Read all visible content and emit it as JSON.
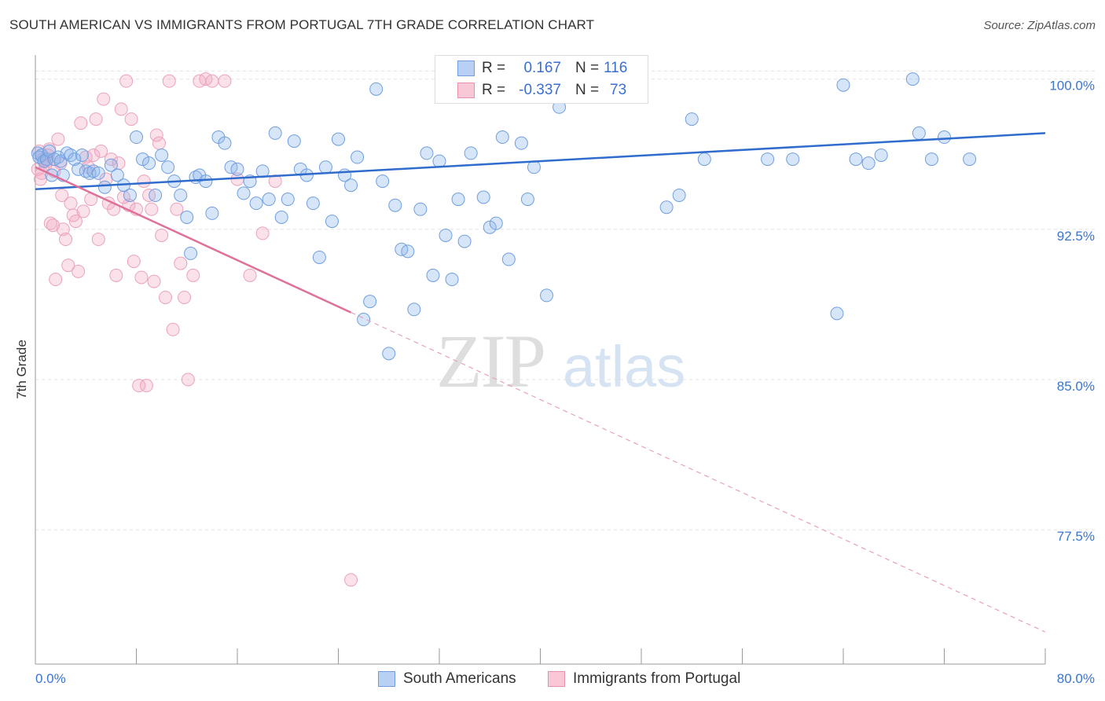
{
  "header": {
    "title": "SOUTH AMERICAN VS IMMIGRANTS FROM PORTUGAL 7TH GRADE CORRELATION CHART",
    "source": "Source: ZipAtlas.com"
  },
  "stats": [
    {
      "r_label": "R =",
      "r_value": "0.167",
      "n_label": "N =",
      "n_value": "116",
      "color": "#6f9fe0",
      "fill": "#b8d0f4"
    },
    {
      "r_label": "R =",
      "r_value": "-0.337",
      "n_label": "N =",
      "n_value": "73",
      "color": "#e88fab",
      "fill": "#f8c8d6"
    }
  ],
  "legend": {
    "series1": "South Americans",
    "series2": "Immigrants from Portugal"
  },
  "watermark": {
    "zip": "ZIP",
    "atlas": "atlas"
  },
  "chart_data": {
    "type": "scatter",
    "title": "SOUTH AMERICAN VS IMMIGRANTS FROM PORTUGAL 7TH GRADE CORRELATION CHART",
    "xlabel": "",
    "ylabel": "7th Grade",
    "xlim": [
      0,
      80
    ],
    "ylim": [
      70.8,
      101.2
    ],
    "x_tick_labels": [
      "0.0%",
      "80.0%"
    ],
    "y_ticks": [
      77.5,
      85.0,
      92.5,
      100.0
    ],
    "y_tick_labels": [
      "77.5%",
      "85.0%",
      "92.5%",
      "100.0%"
    ],
    "grid": "horizontal dashed",
    "legend_position": "bottom-center",
    "colors": {
      "blue": "#3a75d0",
      "pink": "#e0709a",
      "blue_fill": "rgba(140,180,235,0.35)",
      "pink_fill": "rgba(242,170,195,0.35)"
    },
    "series": [
      {
        "name": "South Americans",
        "color": "#3a75d0",
        "trend": {
          "x": [
            0,
            80
          ],
          "y": [
            94.5,
            97.3
          ],
          "style": "solid"
        },
        "points": [
          [
            0.2,
            96.3
          ],
          [
            0.3,
            96.1
          ],
          [
            0.5,
            96.2
          ],
          [
            0.7,
            95.9
          ],
          [
            0.9,
            96.0
          ],
          [
            1.1,
            96.4
          ],
          [
            1.3,
            95.2
          ],
          [
            1.5,
            96.0
          ],
          [
            1.8,
            96.1
          ],
          [
            2.0,
            95.9
          ],
          [
            2.2,
            95.2
          ],
          [
            2.5,
            96.3
          ],
          [
            2.8,
            96.2
          ],
          [
            3.1,
            96.0
          ],
          [
            3.4,
            95.5
          ],
          [
            3.7,
            96.2
          ],
          [
            4.0,
            95.4
          ],
          [
            4.3,
            95.3
          ],
          [
            4.6,
            95.4
          ],
          [
            5.0,
            95.3
          ],
          [
            5.5,
            94.6
          ],
          [
            6.0,
            95.7
          ],
          [
            6.5,
            95.2
          ],
          [
            7.0,
            94.7
          ],
          [
            7.5,
            94.2
          ],
          [
            8.0,
            97.1
          ],
          [
            8.5,
            96.0
          ],
          [
            9.0,
            95.8
          ],
          [
            9.5,
            94.2
          ],
          [
            10.0,
            96.2
          ],
          [
            10.5,
            95.6
          ],
          [
            11.0,
            94.9
          ],
          [
            11.5,
            94.2
          ],
          [
            12.0,
            93.1
          ],
          [
            12.3,
            91.3
          ],
          [
            12.7,
            95.1
          ],
          [
            13.0,
            95.2
          ],
          [
            13.5,
            94.9
          ],
          [
            14.0,
            93.3
          ],
          [
            14.5,
            97.1
          ],
          [
            15.0,
            96.8
          ],
          [
            15.5,
            95.6
          ],
          [
            16.0,
            95.5
          ],
          [
            16.5,
            94.3
          ],
          [
            17.0,
            94.9
          ],
          [
            17.5,
            93.8
          ],
          [
            18.0,
            95.4
          ],
          [
            18.5,
            94.0
          ],
          [
            19.0,
            97.3
          ],
          [
            19.5,
            93.1
          ],
          [
            20.0,
            94.0
          ],
          [
            20.5,
            96.9
          ],
          [
            21.0,
            95.5
          ],
          [
            21.5,
            95.2
          ],
          [
            22.0,
            93.8
          ],
          [
            22.5,
            91.1
          ],
          [
            23.0,
            95.6
          ],
          [
            23.5,
            92.9
          ],
          [
            24.0,
            97.0
          ],
          [
            24.5,
            95.2
          ],
          [
            25.0,
            94.7
          ],
          [
            25.5,
            96.1
          ],
          [
            26.0,
            88.0
          ],
          [
            26.5,
            88.9
          ],
          [
            27.0,
            99.5
          ],
          [
            27.5,
            94.9
          ],
          [
            28.0,
            86.3
          ],
          [
            28.5,
            93.7
          ],
          [
            29.0,
            91.5
          ],
          [
            29.5,
            91.4
          ],
          [
            30.0,
            88.5
          ],
          [
            30.5,
            93.5
          ],
          [
            31.0,
            96.3
          ],
          [
            31.5,
            90.2
          ],
          [
            32.0,
            95.9
          ],
          [
            32.5,
            92.2
          ],
          [
            33.0,
            90.0
          ],
          [
            33.5,
            94.0
          ],
          [
            34.0,
            91.9
          ],
          [
            34.5,
            96.3
          ],
          [
            35.0,
            100.0
          ],
          [
            35.5,
            94.1
          ],
          [
            36.0,
            92.6
          ],
          [
            36.5,
            92.8
          ],
          [
            37.0,
            97.1
          ],
          [
            37.5,
            91.0
          ],
          [
            38.0,
            99.3
          ],
          [
            38.5,
            96.8
          ],
          [
            39.0,
            94.0
          ],
          [
            39.5,
            95.6
          ],
          [
            40.0,
            99.3
          ],
          [
            40.5,
            89.2
          ],
          [
            41.0,
            99.9
          ],
          [
            41.5,
            98.6
          ],
          [
            42.0,
            99.5
          ],
          [
            43.0,
            100.0
          ],
          [
            44.0,
            99.6
          ],
          [
            45.0,
            99.8
          ],
          [
            46.0,
            99.5
          ],
          [
            47.5,
            99.9
          ],
          [
            50.0,
            93.6
          ],
          [
            51.0,
            94.2
          ],
          [
            52.0,
            98.0
          ],
          [
            53.0,
            96.0
          ],
          [
            58.0,
            96.0
          ],
          [
            60.0,
            96.0
          ],
          [
            63.5,
            88.3
          ],
          [
            64.0,
            99.7
          ],
          [
            65.0,
            96.0
          ],
          [
            66.0,
            95.8
          ],
          [
            67.0,
            96.2
          ],
          [
            69.5,
            100.0
          ],
          [
            70.0,
            97.3
          ],
          [
            71.0,
            96.0
          ],
          [
            72.0,
            97.1
          ],
          [
            74.0,
            96.0
          ]
        ]
      },
      {
        "name": "Immigrants from Portugal",
        "color": "#e0709a",
        "trend": {
          "x": [
            0,
            80
          ],
          "y": [
            95.6,
            72.4
          ],
          "style": "solid-to-dashed",
          "solid_until": 25
        },
        "points": [
          [
            0.2,
            95.5
          ],
          [
            0.4,
            95.0
          ],
          [
            0.6,
            96.0
          ],
          [
            0.8,
            95.7
          ],
          [
            1.0,
            96.2
          ],
          [
            1.2,
            92.8
          ],
          [
            1.4,
            92.7
          ],
          [
            1.6,
            90.0
          ],
          [
            1.8,
            97.0
          ],
          [
            2.0,
            95.8
          ],
          [
            2.1,
            94.2
          ],
          [
            2.2,
            92.5
          ],
          [
            2.4,
            92.0
          ],
          [
            2.6,
            90.7
          ],
          [
            2.8,
            93.8
          ],
          [
            3.0,
            93.2
          ],
          [
            3.2,
            92.9
          ],
          [
            3.4,
            90.4
          ],
          [
            3.6,
            97.8
          ],
          [
            3.8,
            93.4
          ],
          [
            4.0,
            96.1
          ],
          [
            4.2,
            95.6
          ],
          [
            4.4,
            94.0
          ],
          [
            4.6,
            96.2
          ],
          [
            4.8,
            98.0
          ],
          [
            5.0,
            92.0
          ],
          [
            5.2,
            96.4
          ],
          [
            5.4,
            99.0
          ],
          [
            5.6,
            95.0
          ],
          [
            5.8,
            93.8
          ],
          [
            6.0,
            96.0
          ],
          [
            6.2,
            93.5
          ],
          [
            6.4,
            90.2
          ],
          [
            6.6,
            95.8
          ],
          [
            6.8,
            98.5
          ],
          [
            7.0,
            94.1
          ],
          [
            7.2,
            99.9
          ],
          [
            7.4,
            93.7
          ],
          [
            7.6,
            98.0
          ],
          [
            7.8,
            90.9
          ],
          [
            8.0,
            93.5
          ],
          [
            8.2,
            84.7
          ],
          [
            8.4,
            90.1
          ],
          [
            8.6,
            94.9
          ],
          [
            8.8,
            84.7
          ],
          [
            9.0,
            94.2
          ],
          [
            9.2,
            93.5
          ],
          [
            9.4,
            89.9
          ],
          [
            9.6,
            97.2
          ],
          [
            9.8,
            96.8
          ],
          [
            10.0,
            92.2
          ],
          [
            10.3,
            89.1
          ],
          [
            10.6,
            99.9
          ],
          [
            10.9,
            87.5
          ],
          [
            11.2,
            93.5
          ],
          [
            11.5,
            90.8
          ],
          [
            11.8,
            89.1
          ],
          [
            12.1,
            85.0
          ],
          [
            12.5,
            90.2
          ],
          [
            13.0,
            99.9
          ],
          [
            13.5,
            100.0
          ],
          [
            14.0,
            99.9
          ],
          [
            15.0,
            99.9
          ],
          [
            16.0,
            95.0
          ],
          [
            17.0,
            90.2
          ],
          [
            18.0,
            92.3
          ],
          [
            19.0,
            94.9
          ],
          [
            25.0,
            75.0
          ],
          [
            0.3,
            96.4
          ],
          [
            0.5,
            95.3
          ],
          [
            0.9,
            95.9
          ],
          [
            1.1,
            96.5
          ],
          [
            1.5,
            95.4
          ]
        ]
      }
    ]
  }
}
